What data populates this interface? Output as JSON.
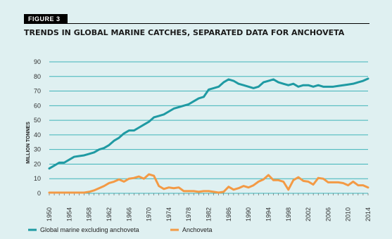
{
  "figure_label": "FIGURE 3",
  "chart_data": {
    "type": "line",
    "title": "TRENDS IN GLOBAL MARINE CATCHES, SEPARATED DATA FOR ANCHOVETA",
    "ylabel": "MILLION TONNES",
    "xlabel": "",
    "ylim": [
      0,
      90
    ],
    "yticks": [
      0,
      10,
      20,
      30,
      40,
      50,
      60,
      70,
      80,
      90
    ],
    "xlim": [
      1950,
      2014
    ],
    "xticks": [
      1950,
      1954,
      1958,
      1962,
      1966,
      1970,
      1974,
      1978,
      1982,
      1986,
      1990,
      1994,
      1998,
      2002,
      2006,
      2010,
      2014
    ],
    "grid": "horizontal",
    "legend": "bottom",
    "colors": {
      "global": "#1f9aa3",
      "anchoveta": "#f39a45",
      "grid": "#3fb4b9",
      "background": "#dff0f1"
    },
    "x": [
      1950,
      1951,
      1952,
      1953,
      1954,
      1955,
      1956,
      1957,
      1958,
      1959,
      1960,
      1961,
      1962,
      1963,
      1964,
      1965,
      1966,
      1967,
      1968,
      1969,
      1970,
      1971,
      1972,
      1973,
      1974,
      1975,
      1976,
      1977,
      1978,
      1979,
      1980,
      1981,
      1982,
      1983,
      1984,
      1985,
      1986,
      1987,
      1988,
      1989,
      1990,
      1991,
      1992,
      1993,
      1994,
      1995,
      1996,
      1997,
      1998,
      1999,
      2000,
      2001,
      2002,
      2003,
      2004,
      2005,
      2006,
      2007,
      2008,
      2009,
      2010,
      2011,
      2012,
      2013,
      2014
    ],
    "series": [
      {
        "name": "Global marine excluding anchoveta",
        "values": [
          17,
          19,
          21,
          21,
          23,
          25,
          25.5,
          26,
          27,
          28,
          30,
          31,
          33,
          36,
          38,
          41,
          43,
          43,
          45,
          47,
          49,
          52,
          53,
          54,
          56,
          58,
          59,
          60,
          61,
          63,
          65,
          66,
          71,
          72,
          73,
          76,
          78,
          77,
          75,
          74,
          73,
          72,
          73,
          76,
          77,
          78,
          76,
          75,
          74,
          75,
          73,
          74,
          74,
          73,
          74,
          73,
          73,
          73,
          73.5,
          74,
          74.5,
          75,
          76,
          77,
          78.5
        ]
      },
      {
        "name": "Anchoveta",
        "values": [
          0.5,
          0.5,
          0.5,
          0.5,
          0.5,
          0.5,
          0.5,
          0.5,
          1,
          2,
          3.5,
          5,
          7,
          8,
          9.5,
          8,
          10,
          10.5,
          11.5,
          10,
          13,
          12,
          5,
          3,
          4,
          3.5,
          4,
          1.5,
          1.5,
          1.5,
          1,
          1.5,
          1.5,
          1,
          0.5,
          1,
          4.5,
          2.5,
          3.5,
          5,
          4,
          5.5,
          8,
          9.5,
          12.5,
          9,
          9,
          8,
          2.5,
          9,
          11,
          8.5,
          8,
          6,
          10.5,
          10,
          7.5,
          7.5,
          7.5,
          7,
          5.5,
          8,
          5.5,
          5.5,
          4
        ]
      }
    ]
  }
}
